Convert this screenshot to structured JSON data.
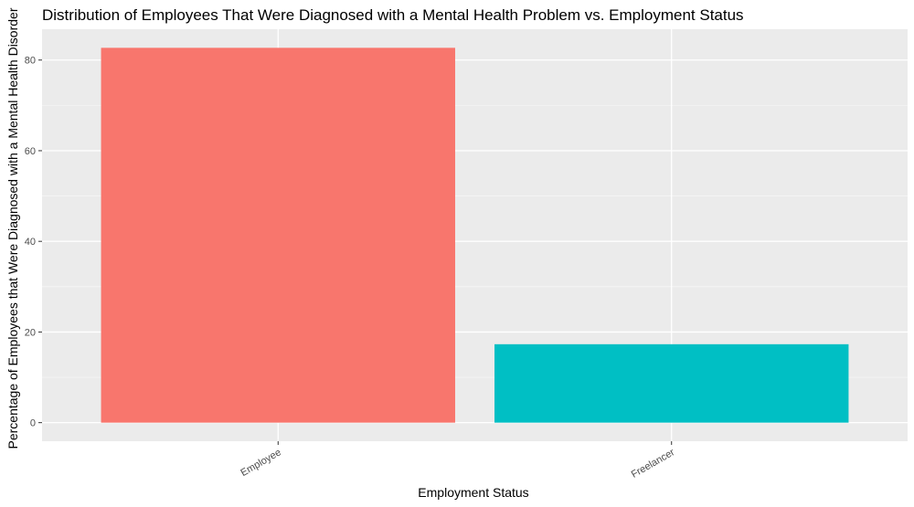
{
  "chart_data": {
    "type": "bar",
    "title": "Distribution of Employees That Were Diagnosed with a Mental Health Problem vs. Employment Status",
    "xlabel": "Employment Status",
    "ylabel": "Percentage of Employees that Were Diagnosed with a Mental Health Disorder",
    "categories": [
      "Employee",
      "Freelancer"
    ],
    "values": [
      82.7,
      17.3
    ],
    "ylim": [
      -4.1,
      86.8
    ],
    "yticks": [
      0,
      20,
      40,
      60,
      80
    ],
    "grid": true,
    "legend": "none"
  },
  "colors": {
    "panel": "#EBEBEB",
    "grid_major": "#FFFFFF",
    "grid_minor": "#F5F5F5",
    "bars": [
      "#F8766D",
      "#00BFC4"
    ],
    "tick_text": "#4D4D4D",
    "tick_mark": "#333333"
  }
}
